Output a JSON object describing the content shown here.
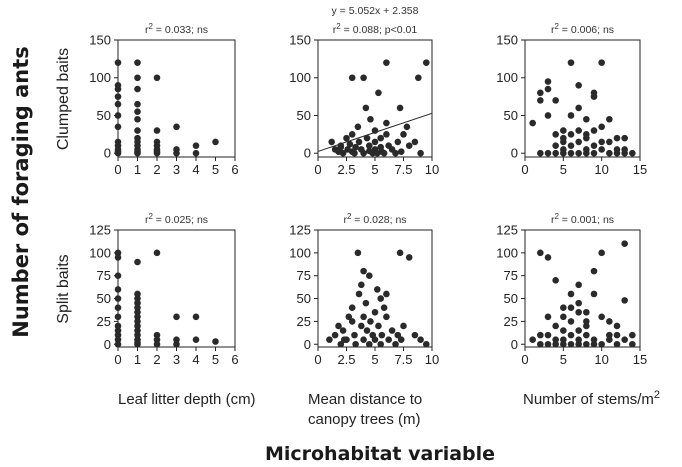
{
  "figure": {
    "y_main_label": "Number of foraging ants",
    "x_main_label": "Microhabitat variable",
    "row_labels": [
      "Clumped baits",
      "Split baits"
    ],
    "column_labels": [
      [
        "Leaf litter depth (cm)"
      ],
      [
        "Mean distance to",
        "canopy trees (m)"
      ],
      [
        "Number of stems/m",
        "2"
      ]
    ]
  },
  "colors": {
    "points": "#2a2a2a",
    "axes": "#222222"
  },
  "chart_data": [
    {
      "id": "clumped-litter",
      "type": "scatter",
      "xticks": [
        0,
        1,
        2,
        3,
        4,
        5,
        6
      ],
      "xlim": [
        0,
        6
      ],
      "yticks": [
        0,
        50,
        100,
        150
      ],
      "ylim": [
        -5,
        150
      ],
      "stat": {
        "r2_prefix": "r",
        "r2_sup": "2",
        "r2_rest": " = 0.033; ns"
      },
      "points": [
        [
          0,
          120
        ],
        [
          0,
          90
        ],
        [
          0,
          85
        ],
        [
          0,
          75
        ],
        [
          0,
          65
        ],
        [
          0,
          50
        ],
        [
          0,
          35
        ],
        [
          0,
          15
        ],
        [
          0,
          10
        ],
        [
          0,
          5
        ],
        [
          0,
          2
        ],
        [
          0,
          0
        ],
        [
          1,
          120
        ],
        [
          1,
          100
        ],
        [
          1,
          85
        ],
        [
          1,
          65
        ],
        [
          1,
          55
        ],
        [
          1,
          45
        ],
        [
          1,
          30
        ],
        [
          1,
          20
        ],
        [
          1,
          15
        ],
        [
          1,
          10
        ],
        [
          1,
          5
        ],
        [
          1,
          2
        ],
        [
          1,
          0
        ],
        [
          2,
          100
        ],
        [
          2,
          30
        ],
        [
          2,
          15
        ],
        [
          2,
          10
        ],
        [
          2,
          5
        ],
        [
          2,
          2
        ],
        [
          2,
          0
        ],
        [
          3,
          35
        ],
        [
          3,
          5
        ],
        [
          3,
          0
        ],
        [
          4,
          10
        ],
        [
          4,
          0
        ],
        [
          5,
          15
        ]
      ]
    },
    {
      "id": "clumped-distance",
      "type": "scatter",
      "xticks": [
        0,
        2.5,
        5,
        7.5,
        10
      ],
      "xlim": [
        0,
        10
      ],
      "yticks": [
        0,
        50,
        100,
        150
      ],
      "ylim": [
        -5,
        150
      ],
      "stat": {
        "equation": "y = 5.052x + 2.358",
        "r2_prefix": "r",
        "r2_sup": "2",
        "r2_rest": " = 0.088; p<0.01"
      },
      "fit": {
        "slope": 5.052,
        "intercept": 2.358
      },
      "points": [
        [
          1.2,
          15
        ],
        [
          1.5,
          5
        ],
        [
          1.8,
          2
        ],
        [
          2,
          10
        ],
        [
          2.2,
          0
        ],
        [
          2.5,
          20
        ],
        [
          2.6,
          5
        ],
        [
          2.8,
          12
        ],
        [
          3,
          2
        ],
        [
          3,
          25
        ],
        [
          3.2,
          0
        ],
        [
          3.3,
          8
        ],
        [
          3.5,
          35
        ],
        [
          3.6,
          15
        ],
        [
          3.8,
          5
        ],
        [
          4,
          0
        ],
        [
          4,
          100
        ],
        [
          4.2,
          60
        ],
        [
          4.3,
          20
        ],
        [
          4.5,
          10
        ],
        [
          4.5,
          3
        ],
        [
          4.6,
          45
        ],
        [
          4.8,
          0
        ],
        [
          5,
          30
        ],
        [
          5,
          15
        ],
        [
          5,
          5
        ],
        [
          5.2,
          0
        ],
        [
          5.3,
          80
        ],
        [
          5.5,
          20
        ],
        [
          5.5,
          8
        ],
        [
          5.6,
          2
        ],
        [
          5.8,
          0
        ],
        [
          6,
          120
        ],
        [
          6,
          25
        ],
        [
          6.2,
          10
        ],
        [
          6.5,
          5
        ],
        [
          6.8,
          0
        ],
        [
          7,
          15
        ],
        [
          7.2,
          60
        ],
        [
          7.3,
          2
        ],
        [
          7.5,
          25
        ],
        [
          7.8,
          35
        ],
        [
          8,
          10
        ],
        [
          8.5,
          15
        ],
        [
          8.8,
          100
        ],
        [
          9,
          0
        ],
        [
          9.5,
          120
        ],
        [
          3,
          100
        ],
        [
          2,
          8
        ],
        [
          6,
          40
        ]
      ]
    },
    {
      "id": "clumped-stems",
      "type": "scatter",
      "xticks": [
        0,
        5,
        10,
        15
      ],
      "xlim": [
        0,
        15
      ],
      "yticks": [
        0,
        50,
        100,
        150
      ],
      "ylim": [
        -5,
        150
      ],
      "stat": {
        "r2_prefix": "r",
        "r2_sup": "2",
        "r2_rest": " = 0.006; ns"
      },
      "points": [
        [
          1,
          40
        ],
        [
          2,
          80
        ],
        [
          2,
          70
        ],
        [
          3,
          85
        ],
        [
          3,
          50
        ],
        [
          3,
          95
        ],
        [
          4,
          10
        ],
        [
          4,
          0
        ],
        [
          4,
          70
        ],
        [
          5,
          5
        ],
        [
          5,
          20
        ],
        [
          5,
          0
        ],
        [
          5,
          15
        ],
        [
          6,
          25
        ],
        [
          6,
          0
        ],
        [
          6,
          10
        ],
        [
          6,
          120
        ],
        [
          7,
          30
        ],
        [
          7,
          15
        ],
        [
          7,
          0
        ],
        [
          7,
          90
        ],
        [
          8,
          20
        ],
        [
          8,
          5
        ],
        [
          8,
          0
        ],
        [
          8,
          45
        ],
        [
          9,
          10
        ],
        [
          9,
          80
        ],
        [
          9,
          75
        ],
        [
          10,
          120
        ],
        [
          10,
          5
        ],
        [
          10,
          35
        ],
        [
          11,
          0
        ],
        [
          11,
          15
        ],
        [
          12,
          20
        ],
        [
          12,
          5
        ],
        [
          13,
          0
        ],
        [
          13,
          20
        ],
        [
          14,
          0
        ],
        [
          2,
          0
        ],
        [
          3,
          0
        ],
        [
          4,
          25
        ],
        [
          5,
          30
        ],
        [
          6,
          50
        ],
        [
          7,
          60
        ],
        [
          8,
          25
        ],
        [
          9,
          30
        ],
        [
          9,
          0
        ],
        [
          11,
          45
        ],
        [
          12,
          0
        ],
        [
          13,
          5
        ],
        [
          10,
          15
        ]
      ]
    },
    {
      "id": "split-litter",
      "type": "scatter",
      "xticks": [
        0,
        1,
        2,
        3,
        4,
        5,
        6
      ],
      "xlim": [
        0,
        6
      ],
      "yticks": [
        0,
        25,
        50,
        75,
        100,
        125
      ],
      "ylim": [
        -3,
        125
      ],
      "stat": {
        "r2_prefix": "r",
        "r2_sup": "2",
        "r2_rest": " = 0.025; ns"
      },
      "points": [
        [
          0,
          100
        ],
        [
          0,
          95
        ],
        [
          0,
          75
        ],
        [
          0,
          60
        ],
        [
          0,
          50
        ],
        [
          0,
          40
        ],
        [
          0,
          30
        ],
        [
          0,
          20
        ],
        [
          0,
          15
        ],
        [
          0,
          10
        ],
        [
          0,
          5
        ],
        [
          0,
          0
        ],
        [
          1,
          90
        ],
        [
          1,
          55
        ],
        [
          1,
          50
        ],
        [
          1,
          45
        ],
        [
          1,
          40
        ],
        [
          1,
          35
        ],
        [
          1,
          30
        ],
        [
          1,
          25
        ],
        [
          1,
          20
        ],
        [
          1,
          15
        ],
        [
          1,
          10
        ],
        [
          1,
          5
        ],
        [
          1,
          2
        ],
        [
          1,
          0
        ],
        [
          2,
          100
        ],
        [
          2,
          10
        ],
        [
          2,
          5
        ],
        [
          2,
          0
        ],
        [
          3,
          30
        ],
        [
          3,
          5
        ],
        [
          3,
          0
        ],
        [
          4,
          30
        ],
        [
          4,
          5
        ],
        [
          5,
          3
        ]
      ]
    },
    {
      "id": "split-distance",
      "type": "scatter",
      "xticks": [
        0,
        2.5,
        5,
        7.5,
        10
      ],
      "xlim": [
        0,
        10
      ],
      "yticks": [
        0,
        25,
        50,
        75,
        100,
        125
      ],
      "ylim": [
        -3,
        125
      ],
      "stat": {
        "r2_prefix": "r",
        "r2_sup": "2",
        "r2_rest": " = 0.028; ns"
      },
      "points": [
        [
          1,
          5
        ],
        [
          1.5,
          10
        ],
        [
          1.8,
          20
        ],
        [
          2,
          0
        ],
        [
          2.2,
          15
        ],
        [
          2.5,
          5
        ],
        [
          2.7,
          30
        ],
        [
          3,
          40
        ],
        [
          3,
          25
        ],
        [
          3.2,
          10
        ],
        [
          3.3,
          0
        ],
        [
          3.5,
          100
        ],
        [
          3.6,
          55
        ],
        [
          3.8,
          20
        ],
        [
          4,
          30
        ],
        [
          4,
          5
        ],
        [
          4.2,
          45
        ],
        [
          4.3,
          15
        ],
        [
          4.5,
          0
        ],
        [
          4.5,
          75
        ],
        [
          4.6,
          25
        ],
        [
          4.8,
          10
        ],
        [
          5,
          35
        ],
        [
          5,
          5
        ],
        [
          5.2,
          60
        ],
        [
          5.3,
          20
        ],
        [
          5.5,
          0
        ],
        [
          5.5,
          50
        ],
        [
          5.6,
          10
        ],
        [
          5.8,
          40
        ],
        [
          6,
          30
        ],
        [
          6.2,
          5
        ],
        [
          6.5,
          15
        ],
        [
          6.8,
          0
        ],
        [
          7,
          10
        ],
        [
          7.2,
          100
        ],
        [
          7.3,
          5
        ],
        [
          7.5,
          20
        ],
        [
          8,
          95
        ],
        [
          8.5,
          10
        ],
        [
          9,
          5
        ],
        [
          9.5,
          0
        ],
        [
          2.3,
          5
        ],
        [
          3.8,
          65
        ],
        [
          6,
          55
        ],
        [
          4,
          80
        ]
      ]
    },
    {
      "id": "split-stems",
      "type": "scatter",
      "xticks": [
        0,
        5,
        10,
        15
      ],
      "xlim": [
        0,
        15
      ],
      "yticks": [
        0,
        25,
        50,
        75,
        100,
        125
      ],
      "ylim": [
        -3,
        125
      ],
      "stat": {
        "r2_prefix": "r",
        "r2_sup": "2",
        "r2_rest": " = 0.001; ns"
      },
      "points": [
        [
          1,
          5
        ],
        [
          2,
          100
        ],
        [
          2,
          10
        ],
        [
          3,
          0
        ],
        [
          3,
          30
        ],
        [
          3,
          95
        ],
        [
          4,
          5
        ],
        [
          4,
          20
        ],
        [
          4,
          70
        ],
        [
          5,
          40
        ],
        [
          5,
          15
        ],
        [
          5,
          0
        ],
        [
          5,
          30
        ],
        [
          6,
          25
        ],
        [
          6,
          0
        ],
        [
          6,
          55
        ],
        [
          6,
          10
        ],
        [
          7,
          35
        ],
        [
          7,
          0
        ],
        [
          7,
          45
        ],
        [
          7,
          65
        ],
        [
          7,
          5
        ],
        [
          8,
          25
        ],
        [
          8,
          10
        ],
        [
          8,
          0
        ],
        [
          8,
          20
        ],
        [
          9,
          55
        ],
        [
          9,
          5
        ],
        [
          9,
          80
        ],
        [
          10,
          100
        ],
        [
          10,
          30
        ],
        [
          10,
          0
        ],
        [
          11,
          10
        ],
        [
          11,
          5
        ],
        [
          12,
          20
        ],
        [
          12,
          0
        ],
        [
          13,
          110
        ],
        [
          13,
          48
        ],
        [
          14,
          0
        ],
        [
          2,
          0
        ],
        [
          3,
          10
        ],
        [
          4,
          0
        ],
        [
          5,
          5
        ],
        [
          6,
          40
        ],
        [
          7,
          15
        ],
        [
          8,
          35
        ],
        [
          9,
          0
        ],
        [
          11,
          25
        ],
        [
          12,
          10
        ],
        [
          13,
          5
        ],
        [
          14,
          10
        ]
      ]
    }
  ]
}
